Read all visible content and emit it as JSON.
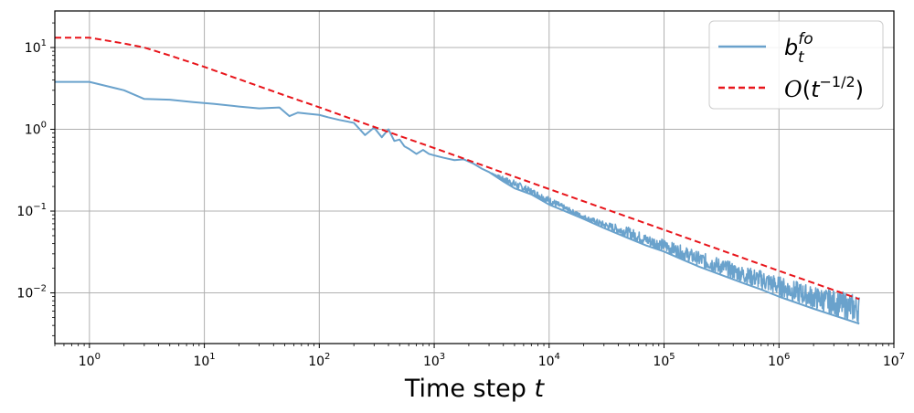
{
  "chart_data": {
    "type": "line",
    "title": "",
    "xlabel": "Time step t",
    "ylabel": "",
    "xscale": "log",
    "yscale": "log",
    "xlim": [
      0.5,
      10000000
    ],
    "ylim": [
      0.0024,
      28
    ],
    "grid": true,
    "legend": "top-right",
    "x_ticks": [
      {
        "value": 1,
        "base": "10",
        "exp": "0"
      },
      {
        "value": 10,
        "base": "10",
        "exp": "1"
      },
      {
        "value": 100,
        "base": "10",
        "exp": "2"
      },
      {
        "value": 1000,
        "base": "10",
        "exp": "3"
      },
      {
        "value": 10000,
        "base": "10",
        "exp": "4"
      },
      {
        "value": 100000,
        "base": "10",
        "exp": "5"
      },
      {
        "value": 1000000,
        "base": "10",
        "exp": "6"
      },
      {
        "value": 10000000,
        "base": "10",
        "exp": "7"
      }
    ],
    "y_ticks": [
      {
        "value": 10,
        "base": "10",
        "exp": "1"
      },
      {
        "value": 1,
        "base": "10",
        "exp": "0"
      },
      {
        "value": 0.1,
        "base": "10",
        "exp": "−1"
      },
      {
        "value": 0.01,
        "base": "10",
        "exp": "−2"
      }
    ],
    "series": [
      {
        "name": "b_t^fo",
        "color": "#6aa2cc",
        "style": "solid",
        "x": [
          0.5,
          1,
          2,
          3,
          5,
          8,
          12,
          20,
          30,
          45,
          55,
          65,
          80,
          100,
          120,
          150,
          200,
          250,
          300,
          350,
          400,
          450,
          500,
          550,
          600,
          700,
          800,
          900,
          1000,
          1200,
          1500,
          1800,
          2200,
          2600,
          3000,
          4000,
          5000,
          7000,
          10000,
          15000,
          20000,
          30000,
          50000,
          70000,
          100000,
          150000,
          200000,
          300000,
          500000,
          700000,
          1000000,
          2000000,
          3000000,
          5000000
        ],
        "y": [
          3.8,
          3.8,
          3.0,
          2.35,
          2.3,
          2.15,
          2.05,
          1.9,
          1.8,
          1.85,
          1.45,
          1.6,
          1.55,
          1.5,
          1.4,
          1.3,
          1.2,
          0.85,
          1.05,
          0.8,
          1.0,
          0.72,
          0.75,
          0.62,
          0.58,
          0.5,
          0.56,
          0.5,
          0.48,
          0.45,
          0.42,
          0.43,
          0.38,
          0.33,
          0.3,
          0.23,
          0.19,
          0.16,
          0.12,
          0.095,
          0.08,
          0.062,
          0.046,
          0.038,
          0.032,
          0.025,
          0.021,
          0.017,
          0.013,
          0.011,
          0.009,
          0.0064,
          0.0053,
          0.0042
        ],
        "band_upper": [
          0.3,
          0.24,
          0.19,
          0.15,
          0.11,
          0.09,
          0.075,
          0.063,
          0.052,
          0.045,
          0.037,
          0.032,
          0.027,
          0.021,
          0.019,
          0.016,
          0.012,
          0.0095
        ],
        "band_x": [
          3000,
          5000,
          7000,
          10000,
          15000,
          20000,
          30000,
          50000,
          70000,
          100000,
          150000,
          200000,
          300000,
          500000,
          700000,
          1000000,
          2000000,
          5000000
        ]
      },
      {
        "name": "O(t^-1/2)",
        "color": "#e8151b",
        "style": "dashed",
        "x": [
          0.5,
          1,
          1.5,
          2,
          3,
          5,
          10,
          20,
          50,
          100,
          200,
          500,
          1000,
          10000,
          100000,
          1000000,
          5000000
        ],
        "y": [
          13.2,
          13.2,
          12.0,
          11.2,
          10.0,
          8.0,
          5.8,
          4.1,
          2.6,
          1.86,
          1.31,
          0.83,
          0.59,
          0.186,
          0.059,
          0.0186,
          0.0084
        ]
      }
    ]
  }
}
